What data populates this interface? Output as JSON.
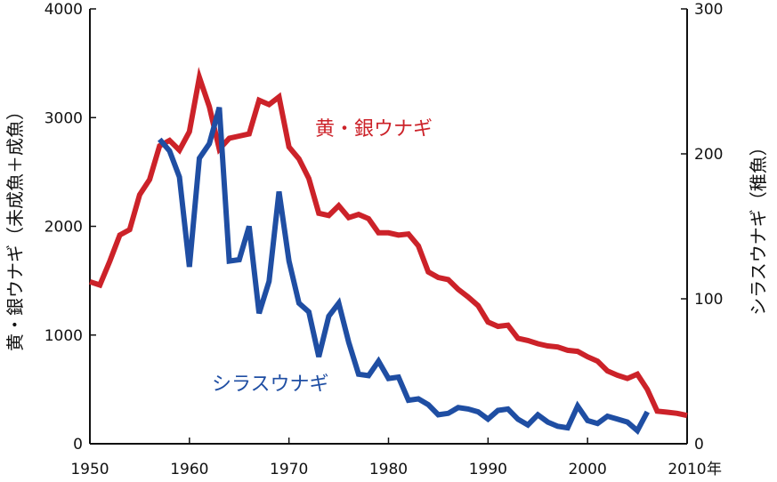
{
  "chart_data": {
    "type": "line",
    "y_left_label": "黄・銀ウナギ（未成魚＋成魚）",
    "y_right_label": "シラスウナギ（稚魚）",
    "x_unit_label": "年",
    "xlim": [
      1950,
      2010
    ],
    "ylim_left": [
      0,
      4000
    ],
    "ylim_right": [
      0,
      300
    ],
    "x_ticks": [
      "1950",
      "1960",
      "1970",
      "1980",
      "1990",
      "2000",
      "2010"
    ],
    "y_left_ticks": [
      "0",
      "1000",
      "2000",
      "3000",
      "4000"
    ],
    "y_right_ticks": [
      "0",
      "100",
      "200",
      "300"
    ],
    "series": [
      {
        "name": "黄・銀ウナギ",
        "axis": "left",
        "color": "#cc2229",
        "x": [
          1950,
          1951,
          1952,
          1953,
          1954,
          1955,
          1956,
          1957,
          1958,
          1959,
          1960,
          1961,
          1962,
          1963,
          1964,
          1965,
          1966,
          1967,
          1968,
          1969,
          1970,
          1971,
          1972,
          1973,
          1974,
          1975,
          1976,
          1977,
          1978,
          1979,
          1980,
          1981,
          1982,
          1983,
          1984,
          1985,
          1986,
          1987,
          1988,
          1989,
          1990,
          1991,
          1992,
          1993,
          1994,
          1995,
          1996,
          1997,
          1998,
          1999,
          2000,
          2001,
          2002,
          2003,
          2004,
          2005,
          2006,
          2007,
          2008,
          2009,
          2010
        ],
        "values": [
          1490,
          1460,
          1680,
          1920,
          1970,
          2290,
          2430,
          2740,
          2790,
          2700,
          2870,
          3370,
          3100,
          2710,
          2810,
          2830,
          2850,
          3160,
          3120,
          3190,
          2730,
          2620,
          2440,
          2120,
          2100,
          2190,
          2080,
          2110,
          2070,
          1940,
          1940,
          1920,
          1930,
          1820,
          1580,
          1530,
          1510,
          1420,
          1350,
          1270,
          1120,
          1080,
          1090,
          970,
          950,
          920,
          900,
          890,
          860,
          850,
          800,
          760,
          670,
          630,
          600,
          640,
          500,
          300,
          290,
          280,
          260
        ]
      },
      {
        "name": "シラスウナギ",
        "axis": "right",
        "color": "#1f4ea3",
        "x": [
          1957,
          1958,
          1959,
          1960,
          1961,
          1962,
          1963,
          1964,
          1965,
          1966,
          1967,
          1968,
          1969,
          1970,
          1971,
          1972,
          1973,
          1974,
          1975,
          1976,
          1977,
          1978,
          1979,
          1980,
          1981,
          1982,
          1983,
          1984,
          1985,
          1986,
          1987,
          1988,
          1989,
          1990,
          1991,
          1992,
          1993,
          1994,
          1995,
          1996,
          1997,
          1998,
          1999,
          2000,
          2001,
          2002,
          2003,
          2004,
          2005,
          2006
        ],
        "values": [
          210,
          202,
          184,
          122,
          197,
          207,
          232,
          126,
          127,
          150,
          90,
          112,
          174,
          126,
          97,
          91,
          60,
          88,
          97,
          70,
          48,
          47,
          57,
          45,
          46,
          30,
          31,
          27,
          20,
          21,
          25,
          24,
          22,
          17,
          23,
          24,
          17,
          13,
          20,
          15,
          12,
          11,
          26,
          16,
          14,
          19,
          17,
          15,
          9,
          22
        ]
      }
    ]
  }
}
